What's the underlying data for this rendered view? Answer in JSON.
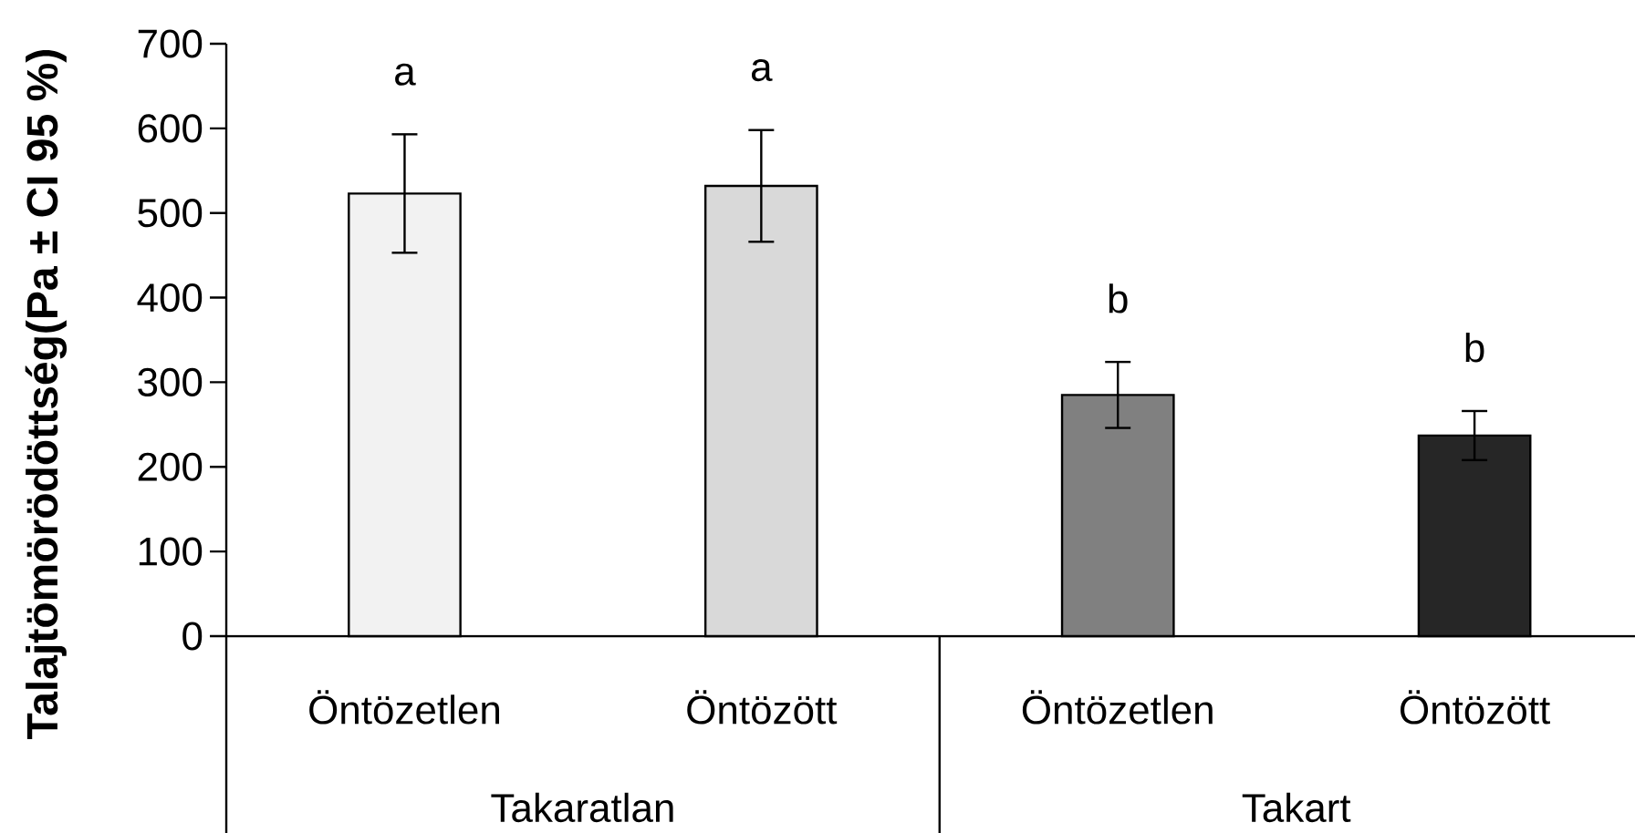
{
  "chart_data": {
    "type": "bar",
    "ylabel": "Talajtömörödöttség(Pa ± CI 95 %)",
    "categories": [
      "Öntözetlen",
      "Öntözött",
      "Öntözetlen",
      "Öntözött"
    ],
    "values": [
      523,
      532,
      285,
      237
    ],
    "errors": [
      70,
      66,
      39,
      29
    ],
    "colors": [
      "#f2f2f2",
      "#d9d9d9",
      "#808080",
      "#262626"
    ],
    "value_labels": [
      "a",
      "a",
      "b",
      "b"
    ],
    "annotations": [
      "Takaratlan",
      "Takart"
    ],
    "ylim": [
      0,
      700
    ],
    "yticks": [
      0,
      100,
      200,
      300,
      400,
      500,
      600,
      700
    ]
  }
}
